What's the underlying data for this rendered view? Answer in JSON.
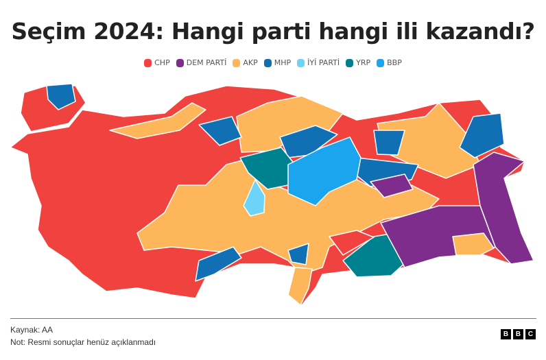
{
  "title": "Seçim 2024: Hangi parti hangi ili kazandı?",
  "legend": [
    {
      "label": "CHP",
      "color": "#f0433f"
    },
    {
      "label": "DEM PARTİ",
      "color": "#7f2d8c"
    },
    {
      "label": "AKP",
      "color": "#fdb75a"
    },
    {
      "label": "MHP",
      "color": "#1170b3"
    },
    {
      "label": "İYİ PARTİ",
      "color": "#6ed4f7"
    },
    {
      "label": "YRP",
      "color": "#008190"
    },
    {
      "label": "BBP",
      "color": "#1ba5ee"
    }
  ],
  "footer": {
    "source": "Kaynak: AA",
    "note": "Not: Resmi sonuçlar henüz açıklanmadı",
    "logo": "BBC"
  }
}
